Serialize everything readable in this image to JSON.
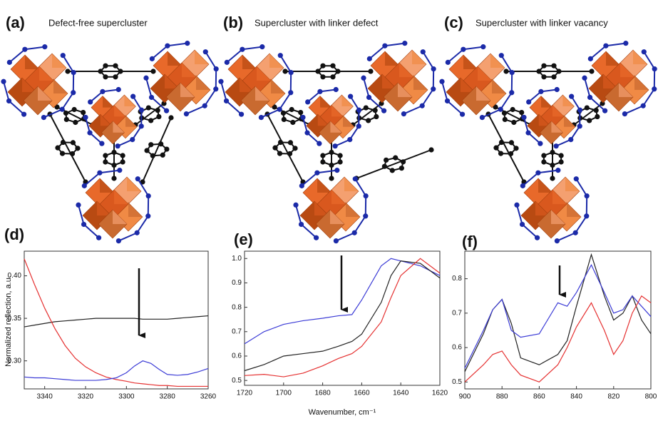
{
  "panels": [
    {
      "label": "(a)",
      "title": "Defect-free supercluster"
    },
    {
      "label": "(b)",
      "title": "Supercluster with linker defect"
    },
    {
      "label": "(c)",
      "title": "Supercluster with linker vacancy"
    }
  ],
  "chart_data": [
    {
      "type": "line",
      "label": "(d)",
      "y_label": "Normalized reflection, a.u.",
      "x": [
        3350,
        3345,
        3340,
        3335,
        3330,
        3325,
        3320,
        3315,
        3310,
        3305,
        3300,
        3296,
        3292,
        3288,
        3284,
        3280,
        3275,
        3270,
        3265,
        3260
      ],
      "series": [
        {
          "color": "#222222",
          "values": [
            0.34,
            0.342,
            0.344,
            0.346,
            0.347,
            0.348,
            0.349,
            0.35,
            0.35,
            0.35,
            0.35,
            0.35,
            0.349,
            0.349,
            0.349,
            0.349,
            0.35,
            0.351,
            0.352,
            0.353
          ]
        },
        {
          "color": "#e53030",
          "values": [
            0.42,
            0.39,
            0.362,
            0.338,
            0.318,
            0.303,
            0.293,
            0.286,
            0.281,
            0.278,
            0.276,
            0.274,
            0.273,
            0.272,
            0.271,
            0.271,
            0.27,
            0.27,
            0.27,
            0.27
          ]
        },
        {
          "color": "#3b3bd6",
          "values": [
            0.281,
            0.28,
            0.28,
            0.279,
            0.278,
            0.277,
            0.277,
            0.277,
            0.278,
            0.28,
            0.286,
            0.294,
            0.3,
            0.297,
            0.29,
            0.284,
            0.283,
            0.284,
            0.287,
            0.291
          ]
        }
      ],
      "xlim": [
        3350,
        3260
      ],
      "xticks": [
        3340,
        3320,
        3300,
        3280,
        3260
      ],
      "ylim": [
        0.267,
        0.429
      ],
      "yticks": [
        {
          "value": 0.3,
          "label": "0.30"
        },
        0.35,
        {
          "value": 0.4,
          "label": "0.40"
        }
      ]
    },
    {
      "type": "line",
      "label": "(e)",
      "x_label": "Wavenumber, cm⁻¹",
      "x": [
        1720,
        1710,
        1700,
        1690,
        1680,
        1672,
        1665,
        1660,
        1650,
        1645,
        1640,
        1630,
        1620
      ],
      "series": [
        {
          "color": "#3b3bd6",
          "values": [
            0.65,
            0.7,
            0.73,
            0.745,
            0.755,
            0.765,
            0.77,
            0.83,
            0.97,
            1.0,
            0.99,
            0.97,
            0.93
          ]
        },
        {
          "color": "#222222",
          "values": [
            0.54,
            0.565,
            0.6,
            0.61,
            0.62,
            0.64,
            0.66,
            0.69,
            0.82,
            0.93,
            0.99,
            0.98,
            0.92
          ]
        },
        {
          "color": "#e53030",
          "values": [
            0.52,
            0.525,
            0.515,
            0.53,
            0.56,
            0.59,
            0.61,
            0.64,
            0.74,
            0.84,
            0.93,
            1.0,
            0.94
          ]
        }
      ],
      "xlim": [
        1720,
        1620
      ],
      "xticks": [
        1720,
        1700,
        1680,
        1660,
        1640,
        1620
      ],
      "ylim": [
        0.48,
        1.03
      ],
      "yticks": [
        0.5,
        0.6,
        0.7,
        0.8,
        0.9,
        {
          "value": 1,
          "label": "1.0"
        }
      ]
    },
    {
      "type": "line",
      "label": "(f)",
      "x": [
        900,
        890,
        885,
        880,
        875,
        870,
        860,
        850,
        845,
        840,
        832,
        825,
        820,
        815,
        810,
        805,
        800
      ],
      "series": [
        {
          "color": "#222222",
          "values": [
            0.53,
            0.64,
            0.71,
            0.74,
            0.67,
            0.57,
            0.55,
            0.58,
            0.62,
            0.72,
            0.87,
            0.75,
            0.68,
            0.7,
            0.75,
            0.68,
            0.64
          ]
        },
        {
          "color": "#3b3bd6",
          "values": [
            0.54,
            0.65,
            0.71,
            0.74,
            0.65,
            0.63,
            0.64,
            0.73,
            0.72,
            0.76,
            0.84,
            0.76,
            0.7,
            0.71,
            0.75,
            0.72,
            0.69
          ]
        },
        {
          "color": "#e53030",
          "values": [
            0.5,
            0.55,
            0.58,
            0.59,
            0.55,
            0.52,
            0.5,
            0.55,
            0.6,
            0.66,
            0.73,
            0.65,
            0.58,
            0.62,
            0.7,
            0.75,
            0.73
          ]
        }
      ],
      "xlim": [
        900,
        800
      ],
      "xticks": [
        900,
        880,
        860,
        840,
        820,
        800
      ],
      "ylim": [
        0.48,
        0.88
      ],
      "yticks": [
        0.5,
        0.6,
        0.7,
        0.8
      ]
    }
  ]
}
